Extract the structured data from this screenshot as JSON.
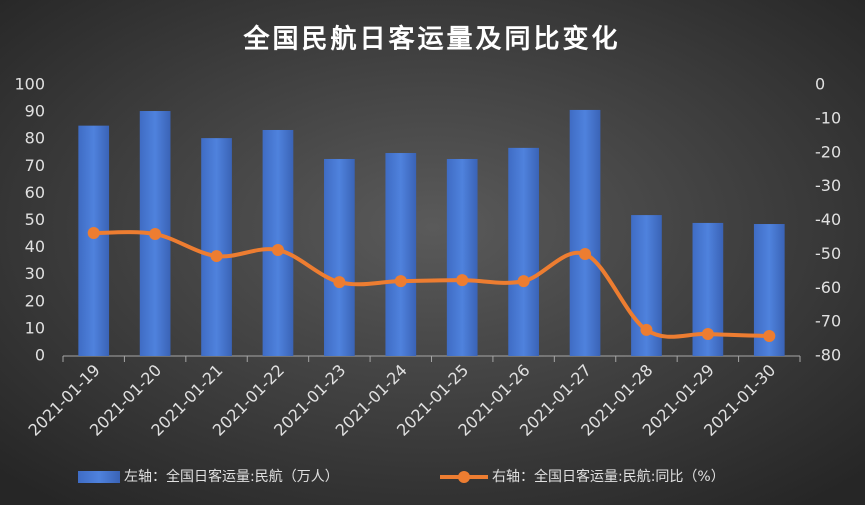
{
  "chart_data": {
    "type": "bar",
    "title": "全国民航日客运量及同比变化",
    "categories": [
      "2021-01-19",
      "2021-01-20",
      "2021-01-21",
      "2021-01-22",
      "2021-01-23",
      "2021-01-24",
      "2021-01-25",
      "2021-01-26",
      "2021-01-27",
      "2021-01-28",
      "2021-01-29",
      "2021-01-30"
    ],
    "series": [
      {
        "name": "左轴：全国日客运量:民航（万人）",
        "type": "bar",
        "color": "#4472c4",
        "values": [
          85,
          90.4,
          80.4,
          83.4,
          72.7,
          74.9,
          72.7,
          76.8,
          90.8,
          52,
          49.1,
          48.7
        ]
      },
      {
        "name": "右轴：全国日客运量:民航:同比（%）",
        "type": "line",
        "axis": "y2",
        "color": "#ed7d31",
        "values": [
          -43.7,
          -44,
          -50.5,
          -48.7,
          -58.2,
          -57.9,
          -57.6,
          -57.9,
          -49.9,
          -72.3,
          -73.5,
          -74.1
        ]
      }
    ],
    "ylim": [
      0,
      100
    ],
    "yticks": [
      0,
      10,
      20,
      30,
      40,
      50,
      60,
      70,
      80,
      90,
      100
    ],
    "y2lim": [
      -80,
      0
    ],
    "y2ticks": [
      0,
      -10,
      -20,
      -30,
      -40,
      -50,
      -60,
      -70,
      -80
    ],
    "grid": false
  }
}
